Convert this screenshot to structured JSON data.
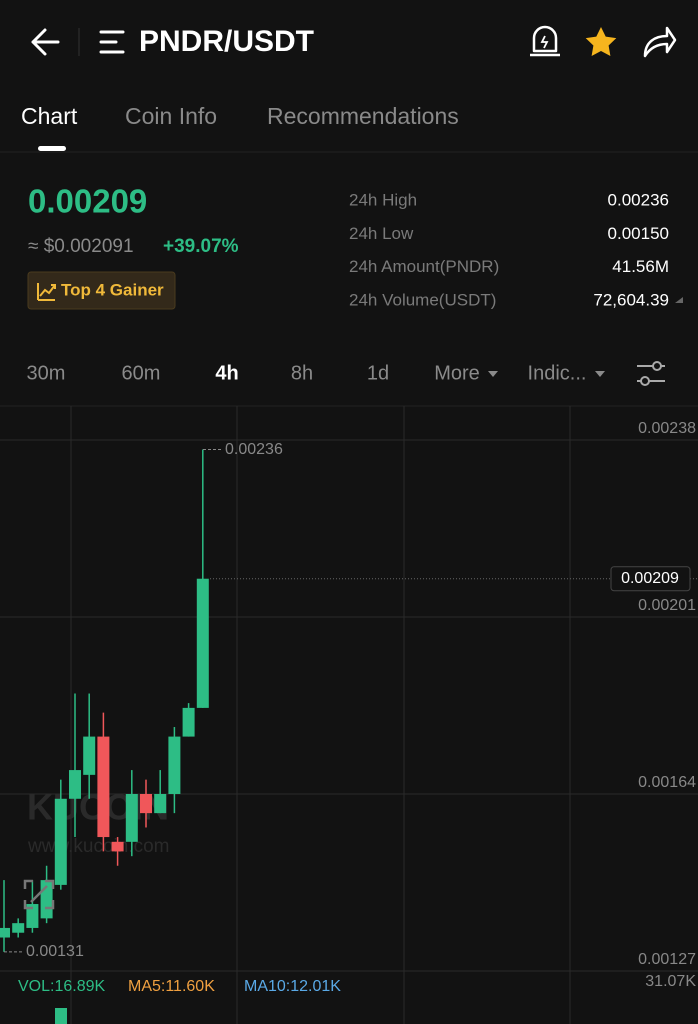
{
  "header": {
    "pair": "PNDR/USDT"
  },
  "tabs": [
    "Chart",
    "Coin Info",
    "Recommendations"
  ],
  "active_tab": 0,
  "price": {
    "last": "0.00209",
    "fiat": "≈ $0.002091",
    "change": "+39.07%",
    "badge": "Top 4 Gainer"
  },
  "stats": [
    {
      "label": "24h High",
      "value": "0.00236"
    },
    {
      "label": "24h Low",
      "value": "0.00150"
    },
    {
      "label": "24h Amount(PNDR)",
      "value": "41.56M"
    },
    {
      "label": "24h Volume(USDT)",
      "value": "72,604.39"
    }
  ],
  "intervals": [
    "30m",
    "60m",
    "4h",
    "8h",
    "1d",
    "More",
    "Indic..."
  ],
  "active_interval": 2,
  "watermark": [
    "KUCOIN",
    "www.kucoin.com"
  ],
  "chart_data": {
    "type": "candlestick",
    "up_color": "#2dbd85",
    "down_color": "#f0575a",
    "ylim": [
      0.00127,
      0.00245
    ],
    "yticks": [
      0.00127,
      0.00164,
      0.00201,
      0.00238
    ],
    "open": [
      0.00134,
      0.00135,
      0.00136,
      0.00138,
      0.00145,
      0.00163,
      0.00168,
      0.00176,
      0.00154,
      0.00154,
      0.00164,
      0.0016,
      0.00164,
      0.00176,
      0.00182
    ],
    "high": [
      0.00146,
      0.00138,
      0.00146,
      0.00149,
      0.00167,
      0.00185,
      0.00185,
      0.00181,
      0.00155,
      0.00169,
      0.00167,
      0.00169,
      0.00178,
      0.00183,
      0.00236
    ],
    "low": [
      0.00131,
      0.00134,
      0.00135,
      0.00137,
      0.00144,
      0.00155,
      0.00163,
      0.00152,
      0.00149,
      0.00151,
      0.00157,
      0.0016,
      0.0016,
      0.00176,
      0.00182
    ],
    "close": [
      0.00136,
      0.00137,
      0.00141,
      0.00146,
      0.00163,
      0.00169,
      0.00176,
      0.00155,
      0.00152,
      0.00164,
      0.0016,
      0.00164,
      0.00176,
      0.00182,
      0.00209
    ],
    "high_mark": 0.00236,
    "low_mark": 0.00131,
    "last": 0.00209
  },
  "volume": {
    "vol": "VOL:16.89K",
    "ma5": "MA5:11.60K",
    "ma10": "MA10:12.01K",
    "max": "31.07K"
  }
}
